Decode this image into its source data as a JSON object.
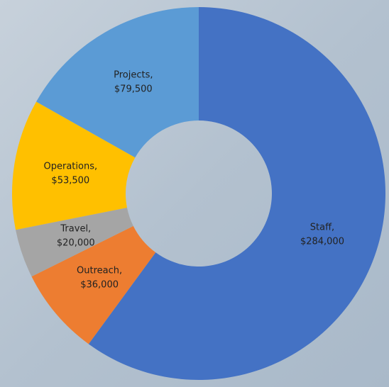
{
  "chart_data": {
    "type": "donut",
    "categories": [
      "Staff,",
      "Outreach,",
      "Travel,",
      "Operations,",
      "Projects,"
    ],
    "values": [
      284000,
      36000,
      20000,
      53500,
      79500
    ],
    "value_labels": [
      "$284,000",
      "$36,000",
      "$20,000",
      "$53,500",
      "$79,500"
    ],
    "colors": [
      "#4472c4",
      "#ed7d31",
      "#a5a5a5",
      "#ffc000",
      "#5b9bd5"
    ]
  }
}
